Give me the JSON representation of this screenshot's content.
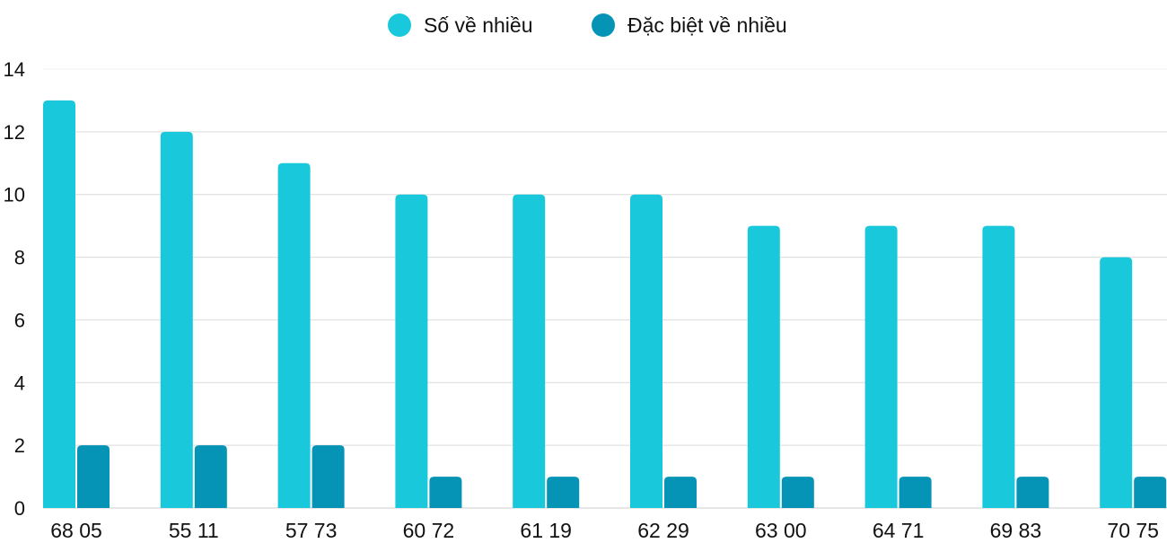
{
  "chart_data": {
    "type": "bar",
    "title": "",
    "xlabel": "",
    "ylabel": "",
    "ylim": [
      0,
      14
    ],
    "yticks": [
      0,
      2,
      4,
      6,
      8,
      10,
      12,
      14
    ],
    "grid": true,
    "legend_position": "top-center",
    "categories": [
      "68 05",
      "55 11",
      "57 73",
      "60 72",
      "61 19",
      "62 29",
      "63 00",
      "64 71",
      "69 83",
      "70 75"
    ],
    "series": [
      {
        "name": "Số về nhiều",
        "color": "#1ac8db",
        "values": [
          13,
          12,
          11,
          10,
          10,
          10,
          9,
          9,
          9,
          8
        ]
      },
      {
        "name": "Đặc biệt về nhiều",
        "color": "#0593b6",
        "values": [
          2,
          2,
          2,
          1,
          1,
          1,
          1,
          1,
          1,
          1
        ]
      }
    ]
  }
}
